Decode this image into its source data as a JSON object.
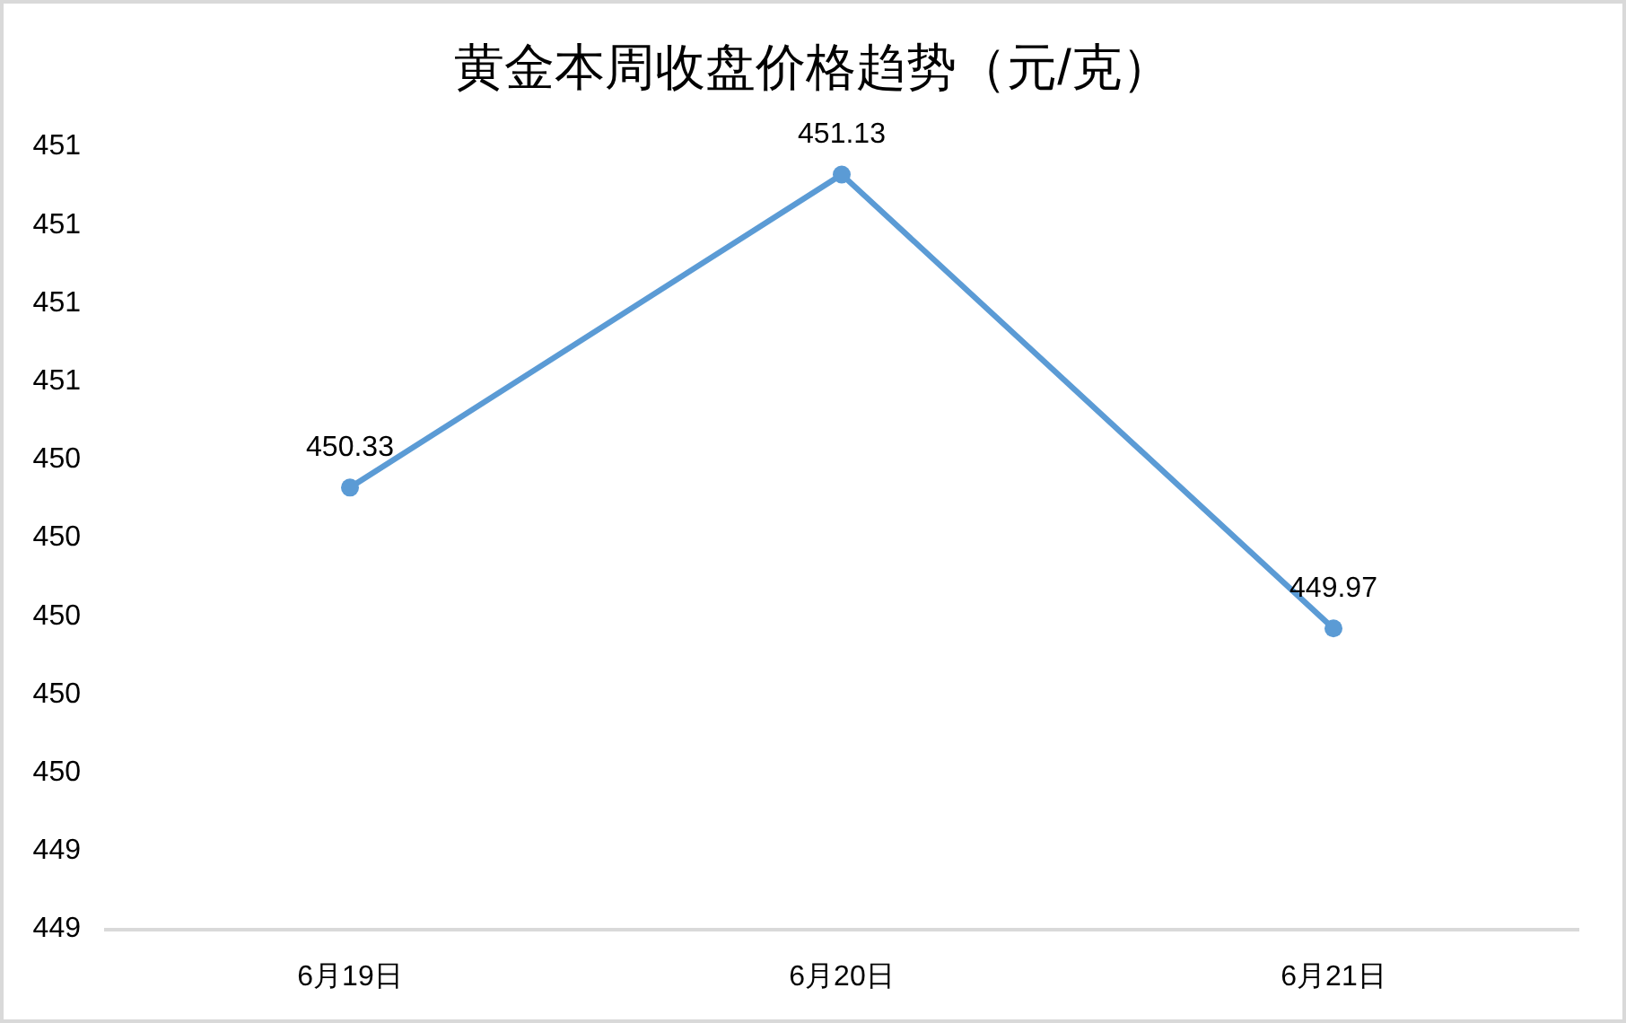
{
  "chart_data": {
    "type": "line",
    "title": "黄金本周收盘价格趋势（元/克）",
    "categories": [
      "6月19日",
      "6月20日",
      "6月21日"
    ],
    "series": [
      {
        "color": "#5b9bd5",
        "values": [
          450.33,
          451.13,
          449.97
        ]
      }
    ],
    "ylim": [
      449.2,
      451.2
    ],
    "yticks": [
      {
        "value": 449.2,
        "label": "449"
      },
      {
        "value": 449.4,
        "label": "449"
      },
      {
        "value": 449.6,
        "label": "450"
      },
      {
        "value": 449.8,
        "label": "450"
      },
      {
        "value": 450.0,
        "label": "450"
      },
      {
        "value": 450.2,
        "label": "450"
      },
      {
        "value": 450.4,
        "label": "450"
      },
      {
        "value": 450.6,
        "label": "451"
      },
      {
        "value": 450.8,
        "label": "451"
      },
      {
        "value": 451.0,
        "label": "451"
      },
      {
        "value": 451.2,
        "label": "451"
      }
    ],
    "data_labels": true,
    "marker": "circle",
    "line_style": "solid"
  }
}
